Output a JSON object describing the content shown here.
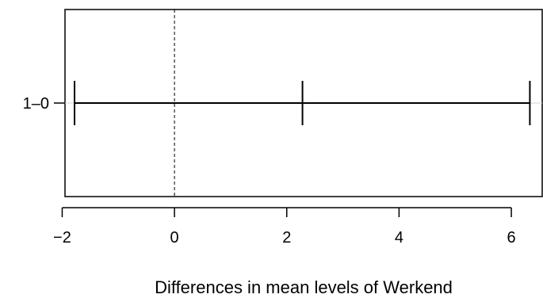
{
  "chart_data": {
    "type": "errorbar",
    "xlabel": "Differences in mean levels of Werkend",
    "xlim": [
      -1.95,
      6.55
    ],
    "xticks": [
      -2,
      0,
      2,
      4,
      6
    ],
    "xtick_labels": [
      "−2",
      "0",
      "2",
      "4",
      "6"
    ],
    "reference_line": 0,
    "categories": [
      "1–0"
    ],
    "intervals": [
      {
        "label": "1–0",
        "lower": -1.78,
        "estimate": 2.28,
        "upper": 6.33
      }
    ]
  }
}
